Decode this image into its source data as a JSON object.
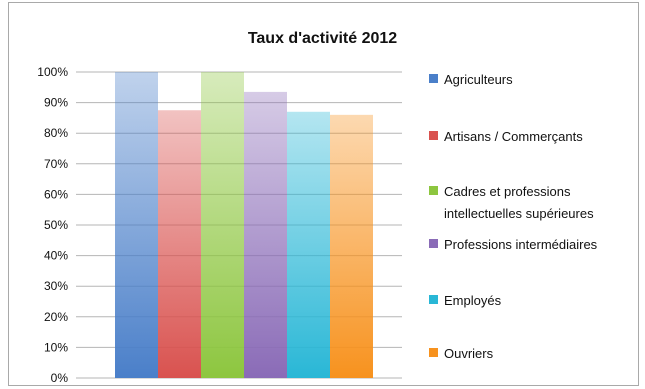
{
  "chart_data": {
    "type": "bar",
    "title": "Taux d'activité 2012",
    "xlabel": "",
    "ylabel": "",
    "ylim": [
      0,
      100
    ],
    "y_ticks": [
      "0%",
      "10%",
      "20%",
      "30%",
      "40%",
      "50%",
      "60%",
      "70%",
      "80%",
      "90%",
      "100%"
    ],
    "grid": true,
    "legend_position": "right",
    "gradient_bars": true,
    "series": [
      {
        "name": "Agriculteurs",
        "value": 100,
        "color": "#4a7fc9"
      },
      {
        "name": "Artisans / Commerçants",
        "value": 87.5,
        "color": "#d9524f"
      },
      {
        "name": "Cadres et professions intellectuelles supérieures",
        "legend_lines": [
          "Cadres et professions",
          "intellectuelles supérieures"
        ],
        "value": 100,
        "color": "#8dc63f"
      },
      {
        "name": "Professions intermédiaires",
        "value": 93.5,
        "color": "#8a6bb7"
      },
      {
        "name": "Employés",
        "value": 87,
        "color": "#29b7d6"
      },
      {
        "name": "Ouvriers",
        "value": 86,
        "color": "#f7921e"
      }
    ]
  }
}
